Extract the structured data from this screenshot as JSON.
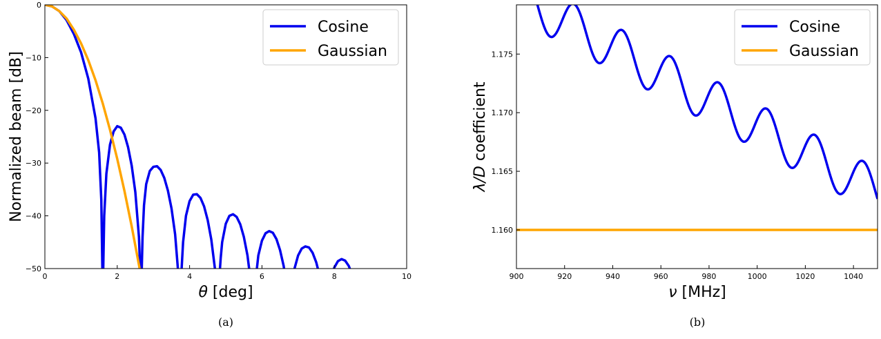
{
  "chart_data": [
    {
      "type": "line",
      "panel_caption": "(a)",
      "xlabel_symbol": "θ",
      "xlabel_rest": " [deg]",
      "ylabel": "Normalized beam [dB]",
      "xlim": [
        0,
        10
      ],
      "ylim": [
        -50,
        0
      ],
      "x_ticks": [
        0,
        2,
        4,
        6,
        8,
        10
      ],
      "x_tick_labels": [
        "0",
        "2",
        "4",
        "6",
        "8",
        "10"
      ],
      "y_ticks": [
        0,
        -10,
        -20,
        -30,
        -40,
        -50
      ],
      "y_tick_labels": [
        "0",
        "−10",
        "−20",
        "−30",
        "−40",
        "−50"
      ],
      "legend_position": "top-right",
      "series": [
        {
          "name": "Cosine",
          "color": "#0000ee",
          "x": [
            0,
            0.2,
            0.4,
            0.6,
            0.8,
            1.0,
            1.2,
            1.4,
            1.5,
            1.56,
            1.6,
            1.64,
            1.7,
            1.8,
            1.9,
            2.0,
            2.1,
            2.2,
            2.3,
            2.4,
            2.5,
            2.6,
            2.66,
            2.7,
            2.74,
            2.8,
            2.9,
            3.0,
            3.1,
            3.2,
            3.3,
            3.4,
            3.5,
            3.6,
            3.7,
            3.74,
            3.78,
            3.82,
            3.9,
            4.0,
            4.1,
            4.2,
            4.3,
            4.4,
            4.5,
            4.6,
            4.7,
            4.78,
            4.82,
            4.86,
            4.9,
            5.0,
            5.1,
            5.2,
            5.3,
            5.4,
            5.5,
            5.6,
            5.7,
            5.78,
            5.82,
            5.86,
            5.9,
            6.0,
            6.1,
            6.2,
            6.3,
            6.4,
            6.5,
            6.6,
            6.7,
            6.78,
            6.82,
            6.86,
            6.9,
            7.0,
            7.1,
            7.2,
            7.3,
            7.4,
            7.5,
            7.6,
            7.7,
            7.78,
            7.82,
            7.86,
            7.9,
            8.0,
            8.1,
            8.2,
            8.3,
            8.4,
            8.5,
            8.6,
            8.7,
            8.78,
            8.82,
            8.86,
            8.9,
            9.0,
            9.1,
            9.2,
            9.3,
            9.4,
            9.5,
            9.6,
            9.7,
            9.78
          ],
          "y": [
            0,
            -0.3,
            -1.2,
            -2.9,
            -5.5,
            -9.0,
            -14.0,
            -21.5,
            -28.0,
            -37.0,
            -55.0,
            -40.0,
            -32.0,
            -26.5,
            -24.0,
            -23.0,
            -23.3,
            -24.6,
            -27.0,
            -30.5,
            -35.5,
            -44.0,
            -55.0,
            -44.0,
            -38.0,
            -34.0,
            -31.5,
            -30.7,
            -30.6,
            -31.3,
            -32.8,
            -35.2,
            -38.6,
            -43.5,
            -52.0,
            -55.0,
            -50.0,
            -45.0,
            -40.0,
            -37.2,
            -36.0,
            -35.9,
            -36.6,
            -38.2,
            -40.8,
            -44.5,
            -50.0,
            -55.0,
            -52.0,
            -48.0,
            -45.0,
            -41.5,
            -40.0,
            -39.7,
            -40.2,
            -41.6,
            -44.0,
            -47.5,
            -53.0,
            -55.0,
            -53.0,
            -50.0,
            -47.5,
            -44.7,
            -43.3,
            -42.9,
            -43.2,
            -44.4,
            -46.5,
            -49.5,
            -54.0,
            -55.0,
            -54.0,
            -51.5,
            -50.0,
            -47.5,
            -46.2,
            -45.8,
            -46.0,
            -47.0,
            -48.8,
            -51.5,
            -55.0,
            -55.0,
            -55.0,
            -53.5,
            -52.0,
            -49.8,
            -48.6,
            -48.2,
            -48.5,
            -49.5,
            -51.3,
            -54.0,
            -55.0,
            -55.0,
            -55.0,
            -55.0,
            -54.5,
            -52.5,
            -51.4,
            -51.0,
            -51.3,
            -52.2,
            -53.8,
            -55.0,
            -55.0,
            -55.0
          ]
        },
        {
          "name": "Gaussian",
          "color": "#ffa500",
          "x": [
            0,
            0.2,
            0.4,
            0.6,
            0.8,
            1.0,
            1.2,
            1.4,
            1.6,
            1.8,
            2.0,
            2.2,
            2.4,
            2.6,
            2.7
          ],
          "y": [
            0,
            -0.3,
            -1.2,
            -2.6,
            -4.7,
            -7.3,
            -10.5,
            -14.3,
            -18.7,
            -23.7,
            -29.2,
            -35.3,
            -42.0,
            -49.3,
            -53.2
          ]
        }
      ]
    },
    {
      "type": "line",
      "panel_caption": "(b)",
      "xlabel_symbol": "ν",
      "xlabel_rest": " [MHz]",
      "ylabel_symbol": "λ/D",
      "ylabel_rest": " coefficient",
      "xlim": [
        900,
        1050
      ],
      "ylim": [
        1.1567,
        1.1792
      ],
      "x_ticks": [
        900,
        920,
        940,
        960,
        980,
        1000,
        1020,
        1040
      ],
      "x_tick_labels": [
        "900",
        "920",
        "940",
        "960",
        "980",
        "1000",
        "1020",
        "1040"
      ],
      "y_ticks": [
        1.16,
        1.165,
        1.17,
        1.175
      ],
      "y_tick_labels": [
        "1.160",
        "1.165",
        "1.170",
        "1.175"
      ],
      "legend_position": "top-right",
      "series": [
        {
          "name": "Cosine",
          "color": "#0000ee",
          "trend": {
            "start": 1.18,
            "slope_per_mhz": -0.0001117
          },
          "oscillation": {
            "amplitude": 0.00195,
            "period_mhz": 20.0,
            "peak_at_mhz": 904
          }
        },
        {
          "name": "Gaussian",
          "color": "#ffa500",
          "x": [
            900,
            1050
          ],
          "y": [
            1.16,
            1.16
          ]
        }
      ]
    }
  ]
}
